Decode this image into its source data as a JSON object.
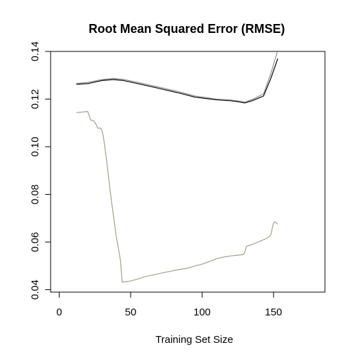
{
  "chart_data": {
    "type": "line",
    "title": "Root Mean Squared Error (RMSE)",
    "xlabel": "Training Set Size",
    "ylabel": "",
    "xlim": [
      -6,
      186
    ],
    "ylim": [
      0.039,
      0.14
    ],
    "x_ticks": [
      0,
      50,
      100,
      150
    ],
    "y_ticks": [
      0.04,
      0.06,
      0.08,
      0.1,
      0.12,
      0.14
    ],
    "x_tick_labels": [
      "0",
      "50",
      "100",
      "150"
    ],
    "y_tick_labels": [
      "0.04",
      "0.06",
      "0.08",
      "0.10",
      "0.12",
      "0.14"
    ],
    "grid": false,
    "legend": false,
    "series": [
      {
        "color": "#000000",
        "x": [
          12,
          20,
          30,
          38,
          45,
          55,
          70,
          85,
          95,
          110,
          120,
          126,
          130,
          135,
          143,
          148,
          153
        ],
        "y": [
          0.1262,
          0.1265,
          0.1278,
          0.1282,
          0.1278,
          0.1265,
          0.1245,
          0.1224,
          0.1208,
          0.1197,
          0.1193,
          0.1188,
          0.1184,
          0.1193,
          0.1213,
          0.1285,
          0.137
        ]
      },
      {
        "color": "#8c8c8c",
        "x": [
          12,
          20,
          30,
          38,
          45,
          55,
          70,
          85,
          95,
          110,
          120,
          126,
          130,
          135,
          143,
          148,
          153
        ],
        "y": [
          0.1266,
          0.127,
          0.1282,
          0.1287,
          0.1283,
          0.127,
          0.125,
          0.1229,
          0.1213,
          0.12,
          0.1196,
          0.1192,
          0.1187,
          0.1198,
          0.1222,
          0.1305,
          0.1405
        ]
      },
      {
        "color": "#9aa38a",
        "x": [
          12,
          15,
          20,
          22,
          24,
          26,
          27,
          29,
          30,
          31,
          33,
          36,
          40,
          43,
          44,
          46,
          50,
          55,
          60,
          70,
          80,
          90,
          95,
          100,
          105,
          110,
          115,
          120,
          125,
          129,
          130,
          131,
          135,
          140,
          145,
          148,
          150,
          151,
          153
        ],
        "y": [
          0.1143,
          0.1145,
          0.1148,
          0.1112,
          0.111,
          0.1092,
          0.1078,
          0.1078,
          0.1068,
          0.104,
          0.095,
          0.08,
          0.062,
          0.052,
          0.0433,
          0.0433,
          0.0437,
          0.0445,
          0.0455,
          0.0468,
          0.048,
          0.0491,
          0.05,
          0.0507,
          0.0518,
          0.053,
          0.0537,
          0.0542,
          0.0545,
          0.0548,
          0.056,
          0.0582,
          0.059,
          0.0602,
          0.0615,
          0.0628,
          0.068,
          0.0685,
          0.0675
        ]
      }
    ]
  }
}
